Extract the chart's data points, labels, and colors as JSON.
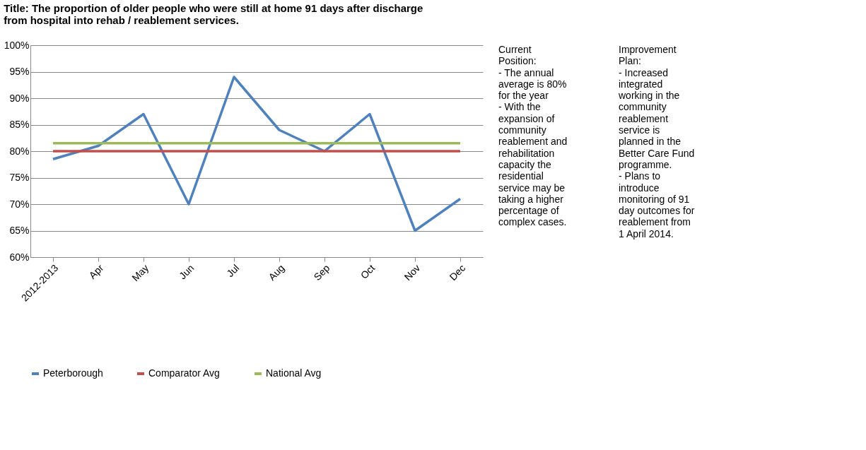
{
  "chart_data": {
    "type": "line",
    "title": "Title: The proportion of older people who were still at home 91 days after discharge from hospital into rehab / reablement services.",
    "categories": [
      "2012-2013",
      "Apr",
      "May",
      "Jun",
      "Jul",
      "Aug",
      "Sep",
      "Oct",
      "Nov",
      "Dec"
    ],
    "series": [
      {
        "name": "Peterborough",
        "color": "#4f81bd",
        "values": [
          78.5,
          81,
          87,
          70,
          94,
          84,
          80,
          87,
          65,
          71
        ]
      },
      {
        "name": "Comparator Avg",
        "color": "#c0504d",
        "values": [
          80,
          80,
          80,
          80,
          80,
          80,
          80,
          80,
          80,
          80
        ]
      },
      {
        "name": "National Avg",
        "color": "#9bbb59",
        "values": [
          81.5,
          81.5,
          81.5,
          81.5,
          81.5,
          81.5,
          81.5,
          81.5,
          81.5,
          81.5
        ]
      }
    ],
    "ylim": [
      60,
      100
    ],
    "yticks": [
      {
        "value": 60,
        "label": "60%"
      },
      {
        "value": 65,
        "label": "65%"
      },
      {
        "value": 70,
        "label": "70%"
      },
      {
        "value": 75,
        "label": "75%"
      },
      {
        "value": 80,
        "label": "80%"
      },
      {
        "value": 85,
        "label": "85%"
      },
      {
        "value": 90,
        "label": "90%"
      },
      {
        "value": 95,
        "label": "95%"
      },
      {
        "value": 100,
        "label": "100%"
      }
    ],
    "grid": "y",
    "legend": "bottom",
    "marker": "none",
    "line_style": "solid",
    "annotations": [
      "Current Position:",
      "- The annual average is 80% for the year",
      "- With the expansion of community reablement and rehabilitation capacity the residential service may be taking a higher percentage of complex cases.",
      "Improvement Plan:",
      "- Increased integrated working in the community reablement service is planned in the Better Care Fund programme.",
      "- Plans to introduce monitoring of 91 day outcomes for reablement from 1 April 2014."
    ]
  }
}
